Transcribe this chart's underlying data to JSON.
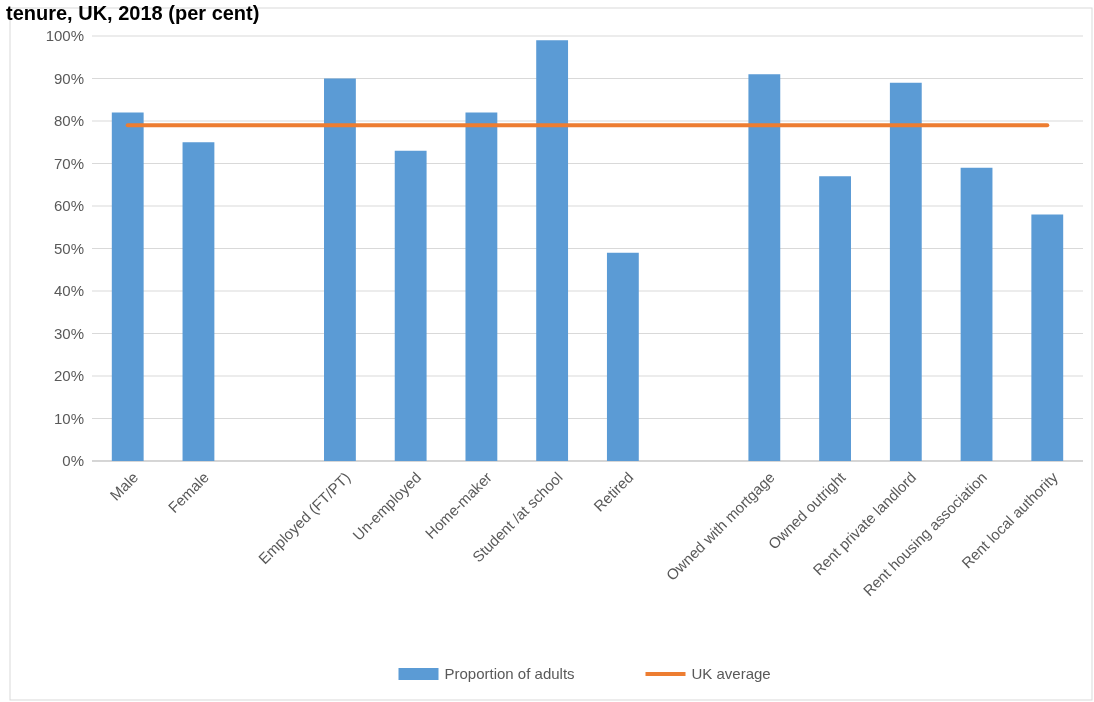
{
  "chart_data": {
    "type": "bar",
    "title": "tenure, UK, 2018 (per cent)",
    "categories": [
      "Male",
      "Female",
      null,
      "Employed (FT/PT)",
      "Un-employed",
      "Home-maker",
      "Student /at school",
      "Retired",
      null,
      "Owned with mortgage",
      "Owned outright",
      "Rent private landlord",
      "Rent housing association",
      "Rent local authority"
    ],
    "series": [
      {
        "name": "Proportion of adults",
        "color": "#5b9bd5",
        "values": [
          82,
          75,
          null,
          90,
          73,
          82,
          99,
          49,
          null,
          91,
          67,
          89,
          69,
          58
        ]
      },
      {
        "name": "UK average",
        "type": "line",
        "color": "#ed7d31",
        "values": [
          79,
          79,
          79,
          79,
          79,
          79,
          79,
          79,
          79,
          79,
          79,
          79,
          79,
          79
        ]
      }
    ],
    "ylim": [
      0,
      100
    ],
    "yticks": [
      {
        "value": 0,
        "label": "0%"
      },
      {
        "value": 10,
        "label": "10%"
      },
      {
        "value": 20,
        "label": "20%"
      },
      {
        "value": 30,
        "label": "30%"
      },
      {
        "value": 40,
        "label": "40%"
      },
      {
        "value": 50,
        "label": "50%"
      },
      {
        "value": 60,
        "label": "60%"
      },
      {
        "value": 70,
        "label": "70%"
      },
      {
        "value": 80,
        "label": "80%"
      },
      {
        "value": 90,
        "label": "90%"
      },
      {
        "value": 100,
        "label": "100%"
      }
    ],
    "grid": "y",
    "legend": "bottom"
  }
}
